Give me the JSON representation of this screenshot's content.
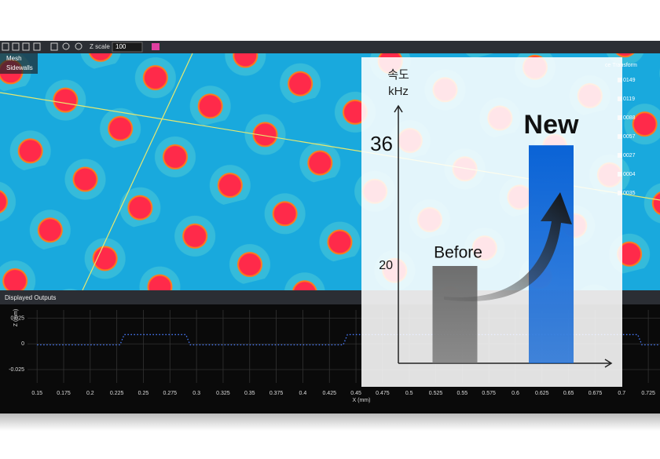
{
  "screenshot": {
    "toolbar_label": "Z scale",
    "toolbar_value": "100",
    "layers": [
      "Mesh",
      "Sidewalls"
    ],
    "legend_title": "ce Transform",
    "legend_values": [
      "0149",
      "0119",
      "0088",
      "0057",
      "0027",
      "0004",
      "0035"
    ],
    "panel_title": "Displayed Outputs"
  },
  "chart_data": [
    {
      "type": "bar",
      "ylabel": "속도",
      "yunit": "kHz",
      "categories": [
        "Before",
        "New"
      ],
      "values": [
        20,
        36
      ],
      "colors": [
        "#6e6e6e",
        "#0a63d6"
      ],
      "ylim": [
        7.1,
        40.7
      ],
      "yticks": [
        20,
        36
      ]
    },
    {
      "type": "line",
      "xlabel": "X (mm)",
      "ylabel": "Z (mm)",
      "x": [
        0.15,
        0.228,
        0.232,
        0.29,
        0.294,
        0.438,
        0.442,
        0.715,
        0.719,
        0.74
      ],
      "series": [
        {
          "color": "#4a7dff",
          "values": [
            -0.001,
            -0.001,
            0.009,
            0.009,
            -0.001,
            -0.001,
            0.009,
            0.009,
            -0.001,
            -0.001
          ]
        }
      ],
      "xlim": [
        0.141,
        0.736
      ],
      "ylim": [
        -0.038,
        0.033
      ],
      "xticks": [
        0.15,
        0.175,
        0.2,
        0.225,
        0.25,
        0.275,
        0.3,
        0.325,
        0.35,
        0.375,
        0.4,
        0.425,
        0.45,
        0.475,
        0.5,
        0.525,
        0.55,
        0.575,
        0.6,
        0.625,
        0.65,
        0.675,
        0.7,
        0.725
      ],
      "yticks": [
        0.025,
        0,
        -0.025
      ],
      "grid": true
    }
  ]
}
